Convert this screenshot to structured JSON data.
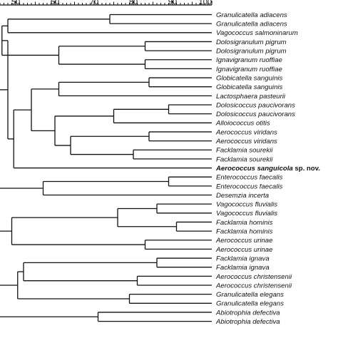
{
  "scale": {
    "ticks": [
      "50",
      "60",
      "70",
      "80",
      "90",
      "100"
    ],
    "min": 46,
    "max": 100
  },
  "taxa": [
    {
      "label": "Granulicatella adiacens",
      "bold": false
    },
    {
      "label": "Granulicatella adiacens",
      "bold": false
    },
    {
      "label": "Vagococcus salmoninarum",
      "bold": false
    },
    {
      "label": "Dolosigranulum pigrum",
      "bold": false
    },
    {
      "label": "Dolosigranulum pigrum",
      "bold": false
    },
    {
      "label": "Ignavigranum ruoffiae",
      "bold": false
    },
    {
      "label": "Ignavigranum ruoffiae",
      "bold": false
    },
    {
      "label": "Globicatella sanguinis",
      "bold": false
    },
    {
      "label": "Globicatella sanguinis",
      "bold": false
    },
    {
      "label": "Lactosphaera pasteurii",
      "bold": false
    },
    {
      "label": "Dolosicoccus paucivorans",
      "bold": false
    },
    {
      "label": "Dolosicoccus paucivorans",
      "bold": false
    },
    {
      "label": "Alloiococcus otitis",
      "bold": false
    },
    {
      "label": "Aerococcus viridans",
      "bold": false
    },
    {
      "label": "Aerococcus viridans",
      "bold": false
    },
    {
      "label": "Facklamia sourekii",
      "bold": false
    },
    {
      "label": "Facklamia sourekii",
      "bold": false
    },
    {
      "label": "Aerococcus sanguicola",
      "suffix": " sp. nov.",
      "bold": true
    },
    {
      "label": "Enterococcus faecalis",
      "bold": false
    },
    {
      "label": "Enterococcus faecalis",
      "bold": false
    },
    {
      "label": "Desemzia incerta",
      "bold": false
    },
    {
      "label": "Vagococcus fluvialis",
      "bold": false
    },
    {
      "label": "Vagococcus fluvialis",
      "bold": false
    },
    {
      "label": "Facklamia hominis",
      "bold": false
    },
    {
      "label": "Facklamia hominis",
      "bold": false
    },
    {
      "label": "Aerococcus urinae",
      "bold": false
    },
    {
      "label": "Aerococcus urinae",
      "bold": false
    },
    {
      "label": "Facklamia ignava",
      "bold": false
    },
    {
      "label": "Facklamia ignava",
      "bold": false
    },
    {
      "label": "Aerococcus christensenii",
      "bold": false
    },
    {
      "label": "Aerococcus christensenii",
      "bold": false
    },
    {
      "label": "Granulicatella elegans",
      "bold": false
    },
    {
      "label": "Granulicatella elegans",
      "bold": false
    },
    {
      "label": "Abiotrophia defectiva",
      "bold": false
    },
    {
      "label": "Abiotrophia defectiva",
      "bold": false
    }
  ],
  "tree": [
    [
      [
        [
          [
            [
              0,
              1,
              74
            ],
            2,
            48
          ],
          [
            [
              3,
              4,
              83
            ],
            [
              5,
              6,
              83
            ],
            61
          ],
          46.5
        ],
        [
          [
            [
              [
                7,
                8,
                84
              ],
              9,
              61
            ],
            [
              [
                [
                  10,
                  11,
                  89
                ],
                12,
                75
              ],
              [
                [
                  13,
                  14,
                  84
                ],
                [
                  15,
                  16,
                  80
                ],
                64
              ],
              60
            ],
            54
          ],
          17,
          49.5
        ],
        48
      ],
      [
        [
          18,
          19,
          89
        ],
        20,
        57
      ],
      45.5
    ],
    [
      [
        [
          [
            21,
            22,
            86
          ],
          [
            23,
            24,
            91
          ],
          76
        ],
        [
          25,
          26,
          83
        ],
        49
      ],
      [
        [
          [
            [
              27,
              28,
              86
            ],
            [
              29,
              30,
              81
            ],
            52
          ],
          [
            31,
            32,
            79
          ],
          50.5
        ],
        [
          33,
          34,
          71
        ],
        45.5
      ],
      45.5
    ],
    45
  ]
}
